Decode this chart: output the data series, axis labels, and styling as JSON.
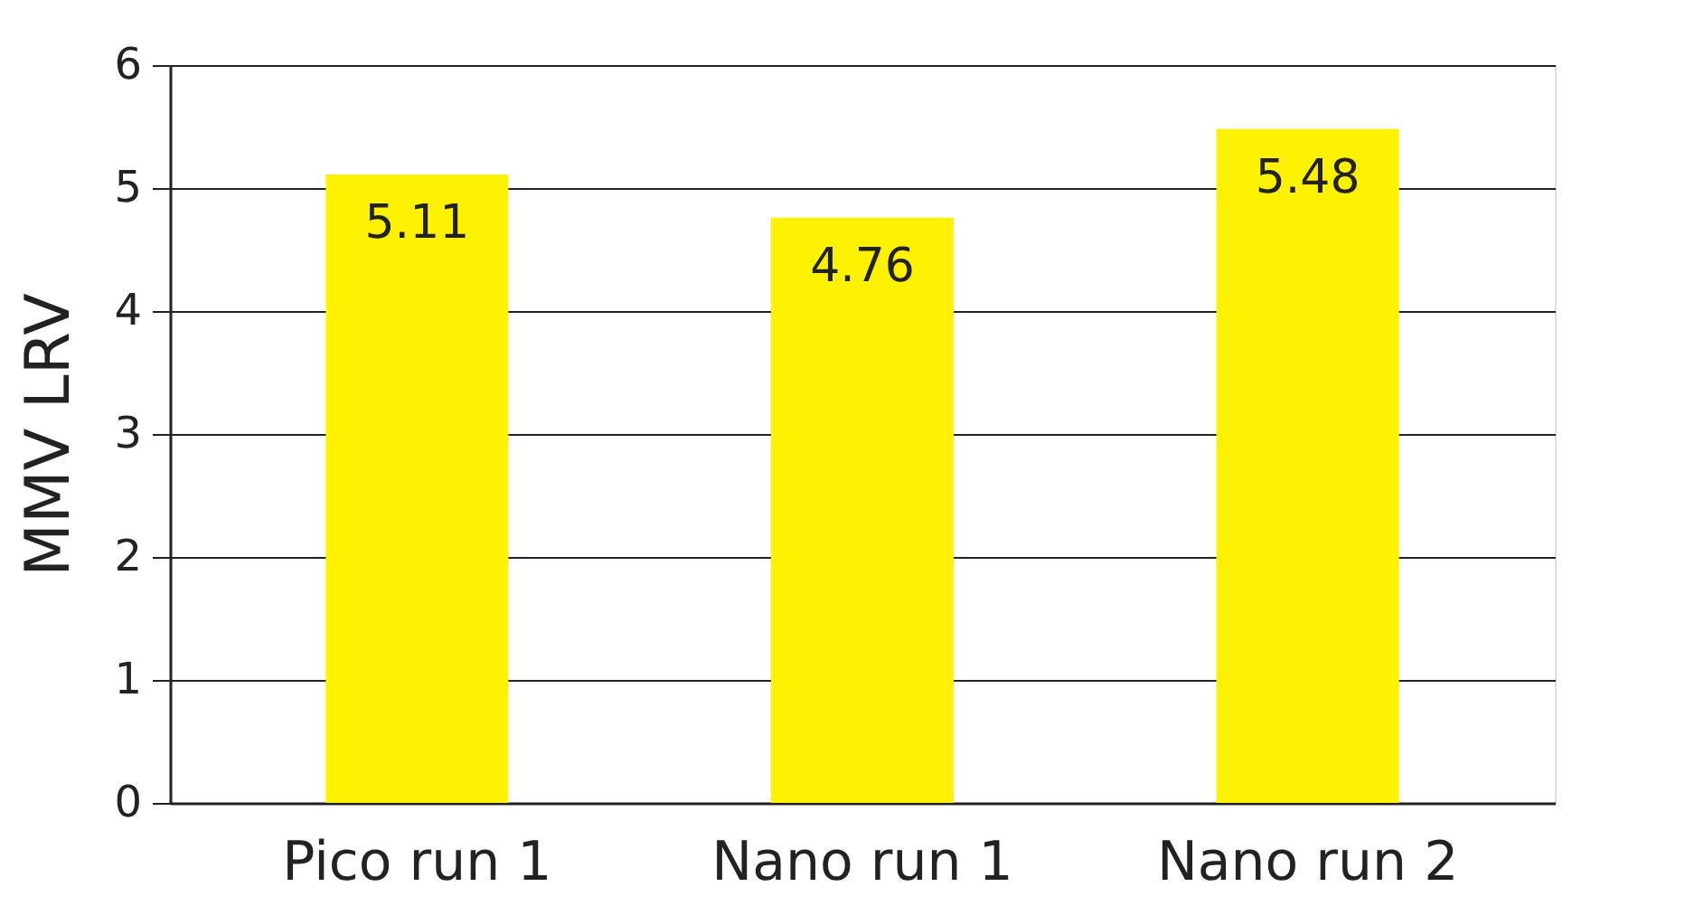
{
  "chart_data": {
    "type": "bar",
    "ylabel": "MMV LRV",
    "categories": [
      "Pico run 1",
      "Nano run 1",
      "Nano run 2"
    ],
    "values": [
      5.11,
      4.76,
      5.48
    ],
    "color": "#fff200",
    "ylim": [
      0,
      6
    ],
    "yticks": [
      0,
      1,
      2,
      3,
      4,
      5,
      6
    ],
    "grid": "y",
    "data_labels": true
  }
}
